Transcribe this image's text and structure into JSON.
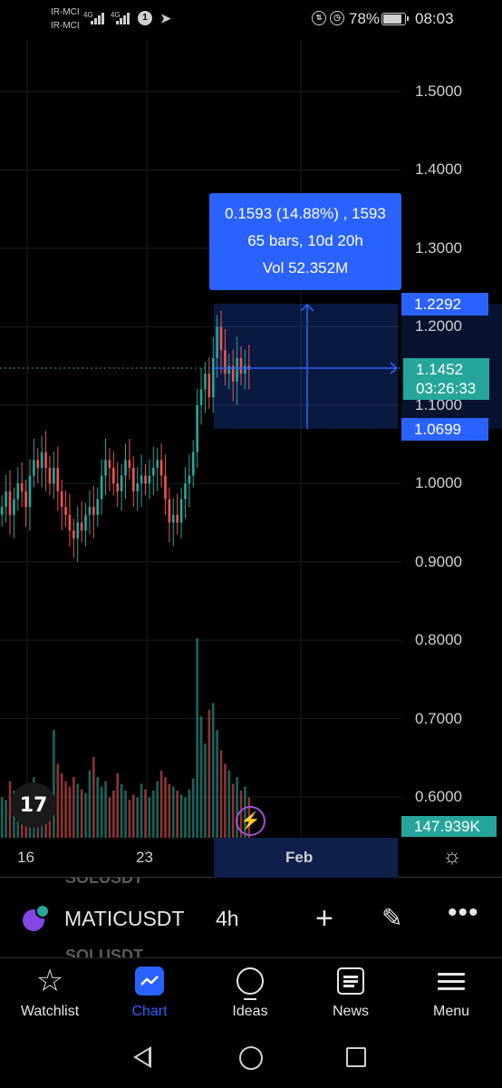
{
  "status_bar": {
    "carrier_1": "IR-MCI",
    "carrier_2": "IR-MCI",
    "net_1": "4G",
    "net_2": "4G",
    "battery": "78%",
    "time": "08:03"
  },
  "price_axis": [
    "1.5000",
    "1.4000",
    "1.3000",
    "1.2000",
    "1.1000",
    "1.0000",
    "0.9000",
    "0.8000",
    "0.7000",
    "0.6000"
  ],
  "measure": {
    "line1": "0.1593 (14.88%) , 1593",
    "line2": "65 bars, 10d 20h",
    "line3": "Vol 52.352M",
    "high": "1.2292",
    "low": "1.0699"
  },
  "last_price": {
    "price": "1.1452",
    "countdown": "03:26:33"
  },
  "volume_label": "147.939K",
  "time_axis": [
    "16",
    "23",
    "Feb"
  ],
  "symbol_bar": {
    "ghost_top": "SOLUSDT",
    "symbol": "MATICUSDT",
    "timeframe": "4h",
    "ghost_bottom": "SOLUSDT"
  },
  "nav": [
    {
      "label": "Watchlist",
      "icon": "star-icon"
    },
    {
      "label": "Chart",
      "icon": "chart-icon"
    },
    {
      "label": "Ideas",
      "icon": "lightbulb-icon"
    },
    {
      "label": "News",
      "icon": "news-icon"
    },
    {
      "label": "Menu",
      "icon": "hamburger-menu-icon"
    }
  ],
  "colors": {
    "up": "#26a69a",
    "down": "#ef5350",
    "accent": "#2962ff",
    "background": "#000000"
  },
  "chart_data": {
    "type": "candlestick",
    "symbol": "MATICUSDT",
    "interval": "4h",
    "ylim": [
      0.55,
      1.55
    ],
    "last_price": 1.1452,
    "range_high": 1.2292,
    "range_low": 1.0699,
    "price_change": 0.1593,
    "price_change_pct": 14.88,
    "closes": [
      0.97,
      0.99,
      0.96,
      0.98,
      1.0,
      0.99,
      0.97,
      1.01,
      1.03,
      1.02,
      1.04,
      1.02,
      1.0,
      1.02,
      0.99,
      0.97,
      0.96,
      0.94,
      0.93,
      0.95,
      0.94,
      0.96,
      0.97,
      0.96,
      0.98,
      1.01,
      1.03,
      1.02,
      1.0,
      0.99,
      1.01,
      1.03,
      1.02,
      0.99,
      1.0,
      1.01,
      1.0,
      1.01,
      1.02,
      1.03,
      1.01,
      0.98,
      0.95,
      0.96,
      0.95,
      0.98,
      1.0,
      1.01,
      1.04,
      1.1,
      1.12,
      1.14,
      1.11,
      1.16,
      1.2,
      1.17,
      1.14,
      1.15,
      1.13,
      1.16,
      1.14,
      1.15,
      1.145
    ],
    "volumes": [
      30,
      28,
      42,
      35,
      25,
      38,
      30,
      22,
      45,
      40,
      35,
      28,
      32,
      80,
      55,
      48,
      42,
      38,
      45,
      40,
      36,
      33,
      50,
      60,
      45,
      38,
      42,
      30,
      35,
      48,
      40,
      35,
      28,
      32,
      30,
      40,
      36,
      30,
      35,
      42,
      50,
      45,
      40,
      38,
      35,
      32,
      30,
      36,
      44,
      148,
      90,
      70,
      95,
      100,
      80,
      65,
      55,
      50,
      40,
      45,
      35,
      38,
      30
    ]
  }
}
